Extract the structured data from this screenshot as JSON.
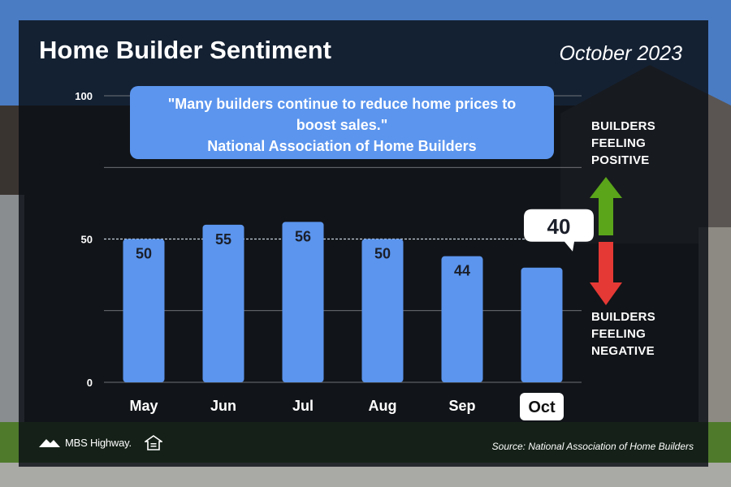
{
  "header": {
    "title": "Home Builder Sentiment",
    "date": "October 2023"
  },
  "quote": {
    "text": "\"Many builders continue to reduce home prices to boost sales.\"",
    "source": "National Association of Home Builders"
  },
  "legend": {
    "positive": "BUILDERS FEELING POSITIVE",
    "negative": "BUILDERS FEELING NEGATIVE",
    "positive_color": "#5aa51a",
    "negative_color": "#e53935"
  },
  "footer": {
    "logo": "MBS Highway.",
    "source": "Source: National Association of Home Builders"
  },
  "colors": {
    "bar": "#5b95ee",
    "highlight_label_bg": "#ffffff"
  },
  "chart_data": {
    "type": "bar",
    "title": "Home Builder Sentiment",
    "categories": [
      "May",
      "Jun",
      "Jul",
      "Aug",
      "Sep",
      "Oct"
    ],
    "values": [
      50,
      55,
      56,
      50,
      44,
      40
    ],
    "data_labels": [
      "50",
      "55",
      "56",
      "50",
      "44",
      "40"
    ],
    "highlight": "Oct",
    "ylim": [
      0,
      100
    ],
    "yticks": [
      0,
      50,
      100
    ],
    "yticks_labels": [
      "0",
      "50",
      "100"
    ],
    "reference_line": 50,
    "grid": true,
    "xlabel": "",
    "ylabel": ""
  }
}
